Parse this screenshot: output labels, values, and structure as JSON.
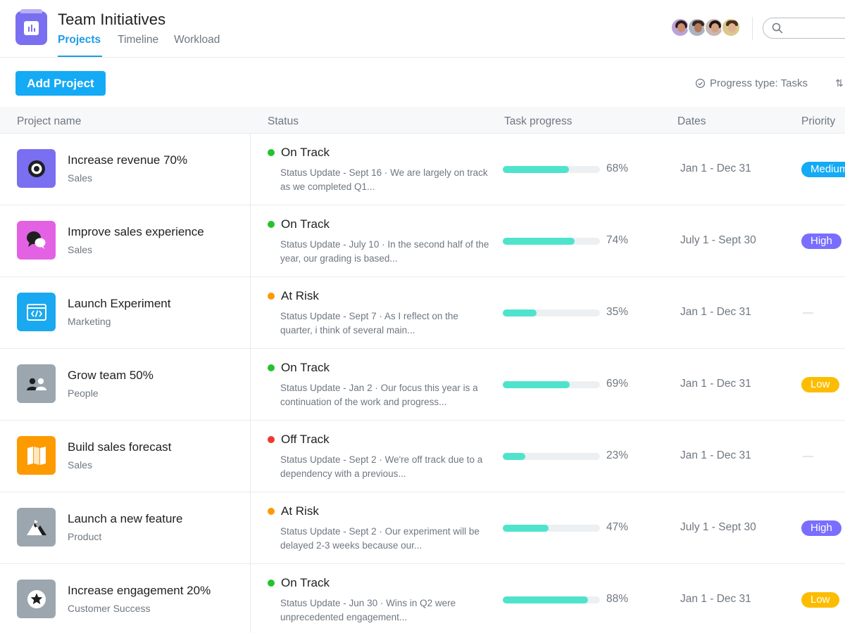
{
  "header": {
    "title": "Team Initiatives",
    "tabs": [
      {
        "label": "Projects",
        "active": true
      },
      {
        "label": "Timeline",
        "active": false
      },
      {
        "label": "Workload",
        "active": false
      }
    ],
    "search": {
      "placeholder": "",
      "icon": "search-icon"
    },
    "members": [
      "member-1",
      "member-2",
      "member-3",
      "member-4"
    ]
  },
  "toolbar": {
    "add_project_label": "Add Project",
    "progress_type_label": "Progress type: Tasks",
    "sort_glyph": "⇅"
  },
  "table": {
    "columns": [
      "Project name",
      "Status",
      "Task progress",
      "Dates",
      "Priority"
    ],
    "rows": [
      {
        "name": "Increase revenue 70%",
        "team": "Sales",
        "icon": "target-icon",
        "icon_color": "#7a6ff0",
        "status": "On Track",
        "status_color": "#25c22c",
        "update": "Status Update - Sept 16 · We are largely on track as we completed Q1...",
        "progress_value": 68,
        "progress": "68%",
        "dates": "Jan 1 - Dec 31",
        "priority": "Medium",
        "priority_color": "#14aaf5"
      },
      {
        "name": "Improve sales experience",
        "team": "Sales",
        "icon": "chat-bubbles-icon",
        "icon_color": "#e362e3",
        "status": "On Track",
        "status_color": "#25c22c",
        "update": "Status Update - July 10 · In the second half of the year, our grading is based...",
        "progress_value": 74,
        "progress": "74%",
        "dates": "July 1 - Sept 30",
        "priority": "High",
        "priority_color": "#796eff"
      },
      {
        "name": "Launch Experiment",
        "team": "Marketing",
        "icon": "code-window-icon",
        "icon_color": "#1aa9f0",
        "status": "At Risk",
        "status_color": "#fd9a00",
        "update": "Status Update - Sept 7 · As I reflect on the quarter, i think of several main...",
        "progress_value": 35,
        "progress": "35%",
        "dates": "Jan 1 - Dec 31",
        "priority": "—",
        "priority_color": ""
      },
      {
        "name": "Grow team 50%",
        "team": "People",
        "icon": "people-icon",
        "icon_color": "#9ca6af",
        "status": "On Track",
        "status_color": "#25c22c",
        "update": "Status Update - Jan 2 · Our focus this year is a continuation of the work and progress...",
        "progress_value": 69,
        "progress": "69%",
        "dates": "Jan 1 - Dec 31",
        "priority": "Low",
        "priority_color": "#fcbd01"
      },
      {
        "name": "Build sales forecast",
        "team": "Sales",
        "icon": "map-icon",
        "icon_color": "#fd9a00",
        "status": "Off Track",
        "status_color": "#f0382b",
        "update": "Status Update - Sept 2 · We're off track due to a dependency with a previous...",
        "progress_value": 23,
        "progress": "23%",
        "dates": "Jan 1 - Dec 31",
        "priority": "—",
        "priority_color": ""
      },
      {
        "name": "Launch a new feature",
        "team": "Product",
        "icon": "mountain-icon",
        "icon_color": "#9ca6af",
        "status": "At Risk",
        "status_color": "#fd9a00",
        "update": "Status Update - Sept 2 · Our experiment will be delayed 2-3 weeks because our...",
        "progress_value": 47,
        "progress": "47%",
        "dates": "July 1 - Sept 30",
        "priority": "High",
        "priority_color": "#796eff"
      },
      {
        "name": "Increase engagement 20%",
        "team": "Customer Success",
        "icon": "star-badge-icon",
        "icon_color": "#9ca6af",
        "status": "On Track",
        "status_color": "#25c22c",
        "update": "Status Update - Jun 30 · Wins in Q2 were unprecedented engagement...",
        "progress_value": 88,
        "progress": "88%",
        "dates": "Jan 1 - Dec 31",
        "priority": "Low",
        "priority_color": "#fcbd01"
      }
    ]
  }
}
